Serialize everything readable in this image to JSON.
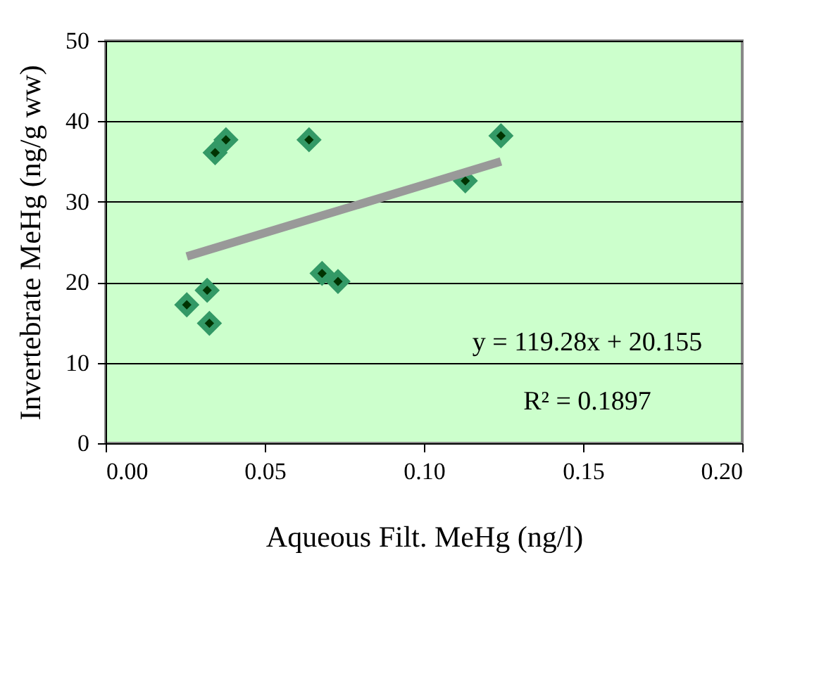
{
  "chart_data": {
    "type": "scatter",
    "xlabel": "Aqueous Filt. MeHg (ng/l)",
    "ylabel": "Invertebrate MeHg (ng/g ww)",
    "series": [
      {
        "color": "#339966",
        "marker": "diamond",
        "x": [
          0.0255,
          0.0319,
          0.0326,
          0.0344,
          0.0378,
          0.0639,
          0.068,
          0.073,
          0.113,
          0.1242
        ],
        "values": [
          17.2,
          19.0,
          14.9,
          36.1,
          37.7,
          37.7,
          21.1,
          20.1,
          32.6,
          38.2
        ]
      },
      {
        "type": "line",
        "color": "#999999",
        "marker": "none",
        "line_style": "solid",
        "x": [
          0.0255,
          0.1242
        ],
        "values": [
          23.2,
          35.0
        ]
      }
    ],
    "xlim": [
      0,
      0.2
    ],
    "ylim": [
      0,
      50
    ],
    "xticks": [
      {
        "value": 0,
        "label": "0.00"
      },
      {
        "value": 0.05,
        "label": "0.05"
      },
      {
        "value": 0.1,
        "label": "0.10"
      },
      {
        "value": 0.15,
        "label": "0.15"
      },
      {
        "value": 0.2,
        "label": "0.20"
      }
    ],
    "yticks": [
      0,
      10,
      20,
      30,
      40,
      50
    ],
    "grid": "y",
    "annotations": [
      "y = 119.28x + 20.155",
      "R² = 0.1897"
    ]
  }
}
